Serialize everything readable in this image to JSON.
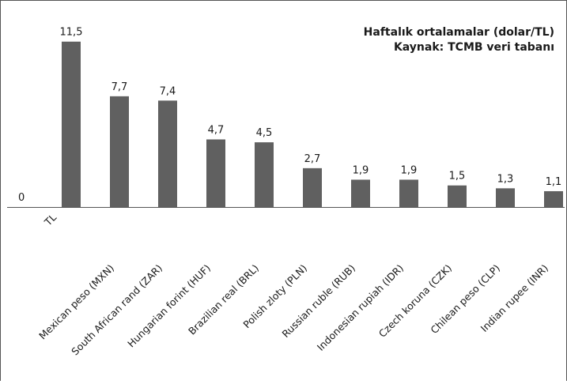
{
  "chart_data": {
    "type": "bar",
    "title": "Haftalık ortalamalar (dolar/TL)",
    "subtitle": "Kaynak: TCMB veri tabanı",
    "categories": [
      "TL",
      "Mexican peso  (MXN)",
      "South African rand  (ZAR)",
      "Hungarian forint  (HUF)",
      "Brazilian real  (BRL)",
      "Polish zloty  (PLN)",
      "Russian ruble  (RUB)",
      "Indonesian rupiah  (IDR)",
      "Czech koruna  (CZK)",
      "Chilean peso  (CLP)",
      "Indian rupee  (INR)"
    ],
    "values": [
      11.5,
      7.7,
      7.4,
      4.7,
      4.5,
      2.7,
      1.9,
      1.9,
      1.5,
      1.3,
      1.1
    ],
    "value_labels": [
      "11,5",
      "7,7",
      "7,4",
      "4,7",
      "4,5",
      "2,7",
      "1,9",
      "1,9",
      "1,5",
      "1,3",
      "1,1"
    ],
    "baseline_label": "0",
    "ylim": [
      0,
      12
    ],
    "grid": false,
    "legend": "none",
    "bar_color": "#606060"
  }
}
